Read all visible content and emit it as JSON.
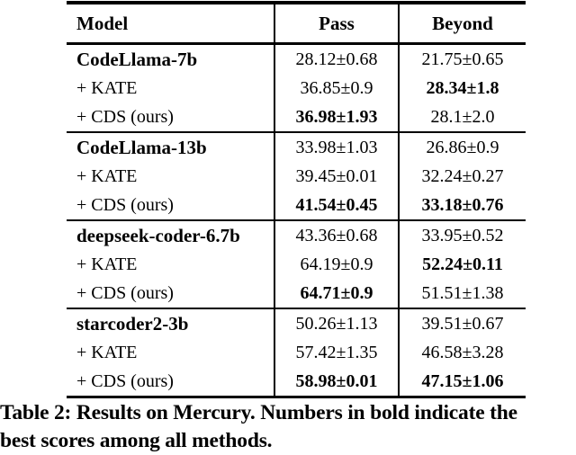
{
  "colors": {
    "text": "#000000",
    "background": "#ffffff",
    "rule": "#000000"
  },
  "table": {
    "columns": [
      "Model",
      "Pass",
      "Beyond"
    ],
    "groups": [
      {
        "rows": [
          {
            "cells": [
              {
                "text": "CodeLlama-7b",
                "bold": true
              },
              {
                "text": "28.12±0.68",
                "bold": false
              },
              {
                "text": "21.75±0.65",
                "bold": false
              }
            ]
          },
          {
            "cells": [
              {
                "text": "+ KATE",
                "bold": false
              },
              {
                "text": "36.85±0.9",
                "bold": false
              },
              {
                "text": "28.34±1.8",
                "bold": true
              }
            ]
          },
          {
            "cells": [
              {
                "text": "+ CDS (ours)",
                "bold": false
              },
              {
                "text": "36.98±1.93",
                "bold": true
              },
              {
                "text": "28.1±2.0",
                "bold": false
              }
            ]
          }
        ]
      },
      {
        "rows": [
          {
            "cells": [
              {
                "text": "CodeLlama-13b",
                "bold": true
              },
              {
                "text": "33.98±1.03",
                "bold": false
              },
              {
                "text": "26.86±0.9",
                "bold": false
              }
            ]
          },
          {
            "cells": [
              {
                "text": "+ KATE",
                "bold": false
              },
              {
                "text": "39.45±0.01",
                "bold": false
              },
              {
                "text": "32.24±0.27",
                "bold": false
              }
            ]
          },
          {
            "cells": [
              {
                "text": "+ CDS (ours)",
                "bold": false
              },
              {
                "text": "41.54±0.45",
                "bold": true
              },
              {
                "text": "33.18±0.76",
                "bold": true
              }
            ]
          }
        ]
      },
      {
        "rows": [
          {
            "cells": [
              {
                "text": "deepseek-coder-6.7b",
                "bold": true
              },
              {
                "text": "43.36±0.68",
                "bold": false
              },
              {
                "text": "33.95±0.52",
                "bold": false
              }
            ]
          },
          {
            "cells": [
              {
                "text": "+ KATE",
                "bold": false
              },
              {
                "text": "64.19±0.9",
                "bold": false
              },
              {
                "text": "52.24±0.11",
                "bold": true
              }
            ]
          },
          {
            "cells": [
              {
                "text": "+ CDS (ours)",
                "bold": false
              },
              {
                "text": "64.71±0.9",
                "bold": true
              },
              {
                "text": "51.51±1.38",
                "bold": false
              }
            ]
          }
        ]
      },
      {
        "rows": [
          {
            "cells": [
              {
                "text": "starcoder2-3b",
                "bold": true
              },
              {
                "text": "50.26±1.13",
                "bold": false
              },
              {
                "text": "39.51±0.67",
                "bold": false
              }
            ]
          },
          {
            "cells": [
              {
                "text": "+ KATE",
                "bold": false
              },
              {
                "text": "57.42±1.35",
                "bold": false
              },
              {
                "text": "46.58±3.28",
                "bold": false
              }
            ]
          },
          {
            "cells": [
              {
                "text": "+ CDS (ours)",
                "bold": false
              },
              {
                "text": "58.98±0.01",
                "bold": true
              },
              {
                "text": "47.15±1.06",
                "bold": true
              }
            ]
          }
        ]
      }
    ]
  },
  "caption": {
    "line1": "Table 2: Results on Mercury. Numbers in bold indicate the",
    "line2": "best scores among all methods."
  }
}
